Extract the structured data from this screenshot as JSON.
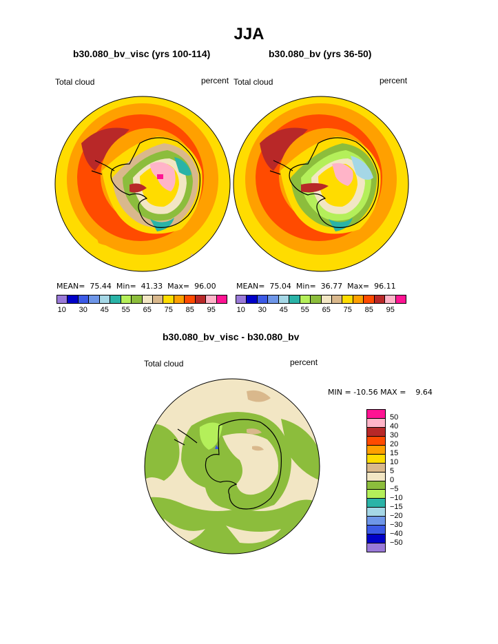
{
  "title": "JJA",
  "panels": [
    {
      "title": "b30.080_bv_visc (yrs 100-114)",
      "var_label": "Total cloud",
      "units": "percent",
      "stats": {
        "mean_label": "MEAN=",
        "mean": "75.44",
        "min_label": "Min=",
        "min": "41.33",
        "max_label": "Max=",
        "max": "96.00"
      }
    },
    {
      "title": "b30.080_bv (yrs 36-50)",
      "var_label": "Total cloud",
      "units": "percent",
      "stats": {
        "mean_label": "MEAN=",
        "mean": "75.04",
        "min_label": "Min=",
        "min": "36.77",
        "max_label": "Max=",
        "max": "96.11"
      }
    }
  ],
  "colorbar_top": {
    "colors": [
      "#9a7ad8",
      "#0000c8",
      "#3c5ae6",
      "#6e96e8",
      "#a5d7e6",
      "#2ab3a7",
      "#b4ef5a",
      "#8cbd3c",
      "#f2e6c4",
      "#d9b88c",
      "#ffdc00",
      "#ffa000",
      "#ff4b00",
      "#b82828",
      "#ffb4c8",
      "#ff1493"
    ],
    "labels": [
      "10",
      "30",
      "45",
      "55",
      "65",
      "75",
      "85",
      "95"
    ]
  },
  "difference": {
    "title": "b30.080_bv_visc - b30.080_bv",
    "var_label": "Total cloud",
    "units": "percent",
    "min_label": "MIN =",
    "min": "-10.56",
    "max_label": "MAX =",
    "max": "9.64"
  },
  "colorbar_diff": {
    "colors": [
      "#ff1493",
      "#ffb4c8",
      "#b82828",
      "#ff4b00",
      "#ffa000",
      "#ffdc00",
      "#d9b88c",
      "#f2e6c4",
      "#8cbd3c",
      "#b4ef5a",
      "#2ab3a7",
      "#a5d7e6",
      "#6e96e8",
      "#3c5ae6",
      "#0000c8",
      "#9a7ad8"
    ],
    "labels": [
      "50",
      "40",
      "30",
      "20",
      "15",
      "10",
      "5",
      "0",
      "−5",
      "−10",
      "−15",
      "−20",
      "−30",
      "−40",
      "−50"
    ]
  }
}
